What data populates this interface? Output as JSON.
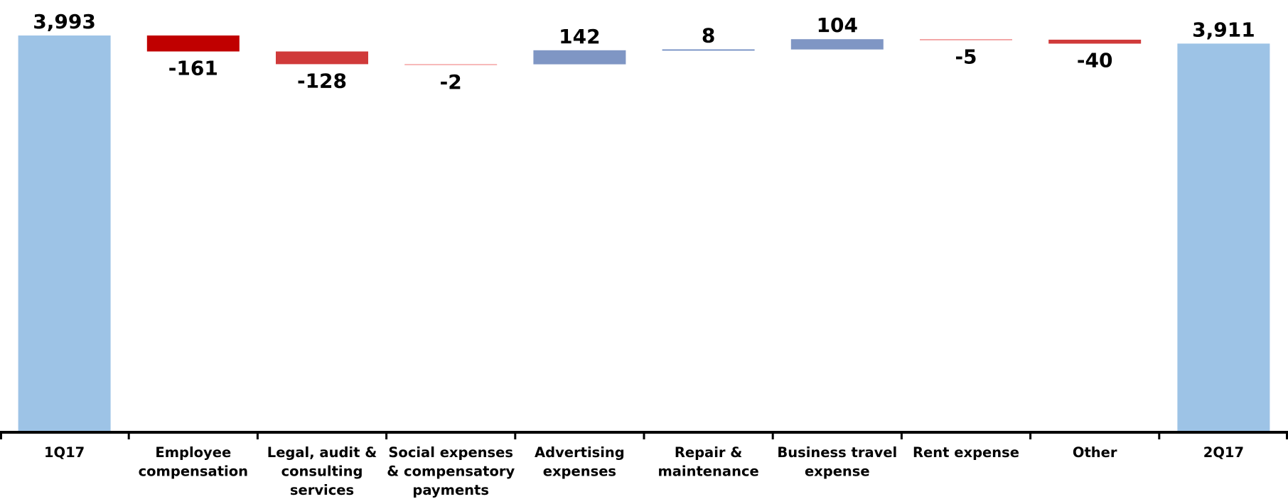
{
  "chart_data": {
    "type": "waterfall",
    "title": "",
    "xlabel": "",
    "ylabel": "",
    "ylim": [
      0,
      3993
    ],
    "grid": false,
    "legend": "none",
    "categories": [
      "1Q17",
      "Employee compensation",
      "Legal, audit & consulting services",
      "Social expenses & compensatory payments",
      "Advertising expenses",
      "Repair & maintenance",
      "Business travel expense",
      "Rent expense",
      "Other",
      "2Q17"
    ],
    "category_lines": [
      [
        "1Q17"
      ],
      [
        "Employee",
        "compensation"
      ],
      [
        "Legal, audit &",
        "consulting",
        "services"
      ],
      [
        "Social expenses",
        "& compensatory",
        "payments"
      ],
      [
        "Advertising",
        "expenses"
      ],
      [
        "Repair &",
        "maintenance"
      ],
      [
        "Business travel",
        "expense"
      ],
      [
        "Rent expense"
      ],
      [
        "Other"
      ],
      [
        "2Q17"
      ]
    ],
    "values": [
      3993,
      -161,
      -128,
      -2,
      142,
      8,
      104,
      -5,
      -40,
      3911
    ],
    "labels": [
      "3,993",
      "-161",
      "-128",
      "-2",
      "142",
      "8",
      "104",
      "-5",
      "-40",
      "3,911"
    ],
    "bar_kind": [
      "total",
      "delta",
      "delta",
      "delta",
      "delta",
      "delta",
      "delta",
      "delta",
      "delta",
      "total"
    ],
    "colors": [
      "#9dc3e6",
      "#c00000",
      "#d03a3a",
      "#f4a3a3",
      "#7f96c4",
      "#5b7bb8",
      "#7f96c4",
      "#f08c8c",
      "#d03a3a",
      "#9dc3e6"
    ]
  }
}
